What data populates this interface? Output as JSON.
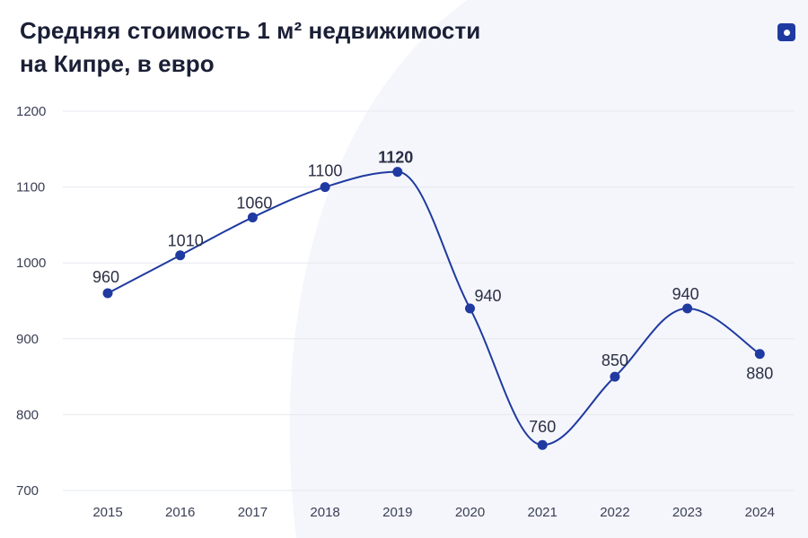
{
  "title_line1": "Средняя стоимость 1 м² недвижимости",
  "title_line2": "на Кипре, в евро",
  "logo_icon": "square-dot-logo-icon",
  "colors": {
    "line": "#1f3aa0",
    "point": "#1f3aa0",
    "grid": "#e6e8ee",
    "text": "#1a1f36"
  },
  "chart_data": {
    "type": "line",
    "title": "Средняя стоимость 1 м² недвижимости на Кипре, в евро",
    "categories": [
      "2015",
      "2016",
      "2017",
      "2018",
      "2019",
      "2020",
      "2021",
      "2022",
      "2023",
      "2024"
    ],
    "series": [
      {
        "values": [
          960,
          1010,
          1060,
          1100,
          1120,
          940,
          760,
          850,
          940,
          880
        ]
      }
    ],
    "data_labels": [
      "960",
      "1010",
      "1060",
      "1100",
      "1120",
      "940",
      "760",
      "850",
      "940",
      "880"
    ],
    "highlighted_label_index": 4,
    "yticks": [
      700,
      800,
      900,
      1000,
      1100,
      1200
    ],
    "ylim": [
      700,
      1200
    ],
    "grid": true,
    "legend": "none",
    "smooth": true
  }
}
